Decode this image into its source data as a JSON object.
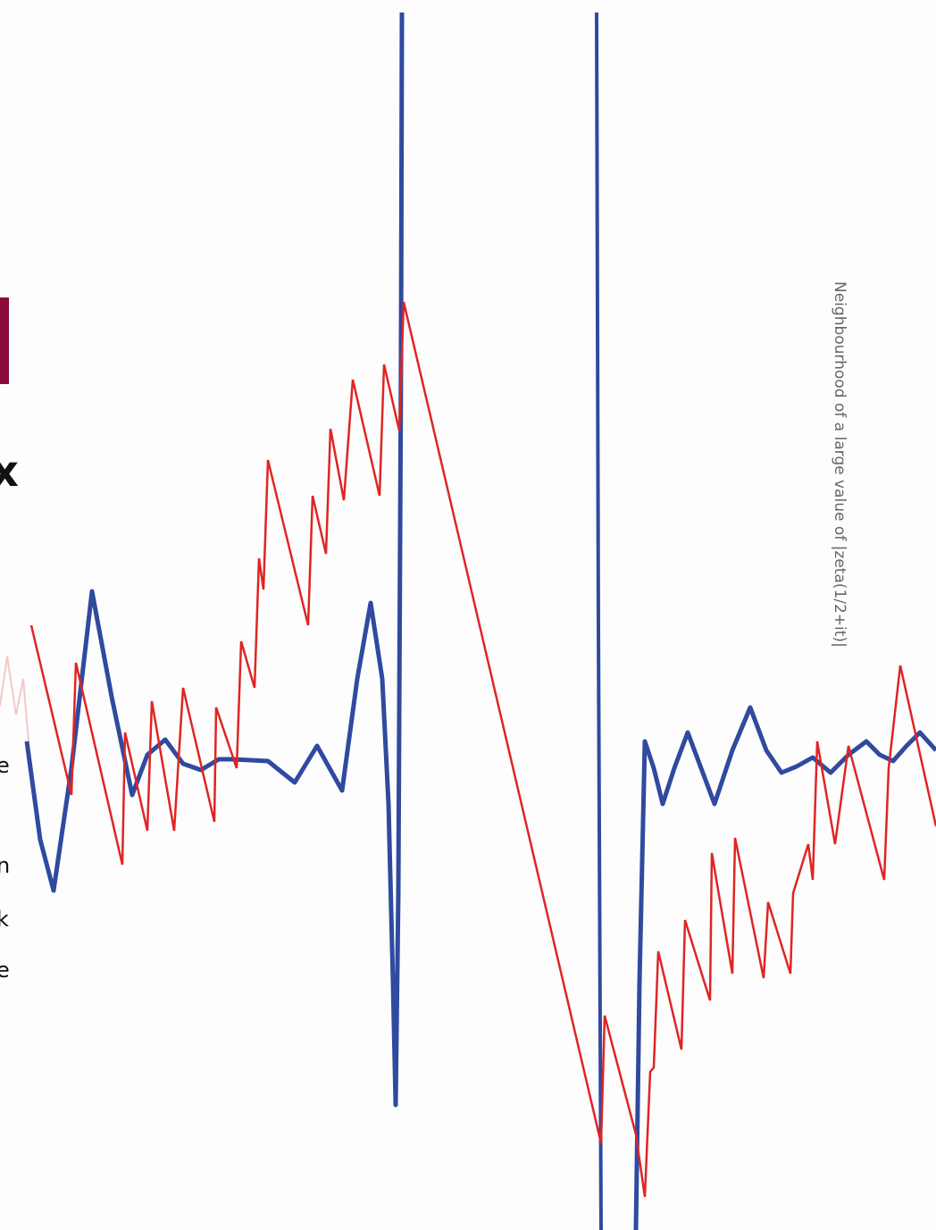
{
  "caption": "Neighbourhood of a large value of |zeta(1/2+it)|",
  "fragments": [
    "x",
    "e",
    "n",
    "k",
    "e"
  ]
}
